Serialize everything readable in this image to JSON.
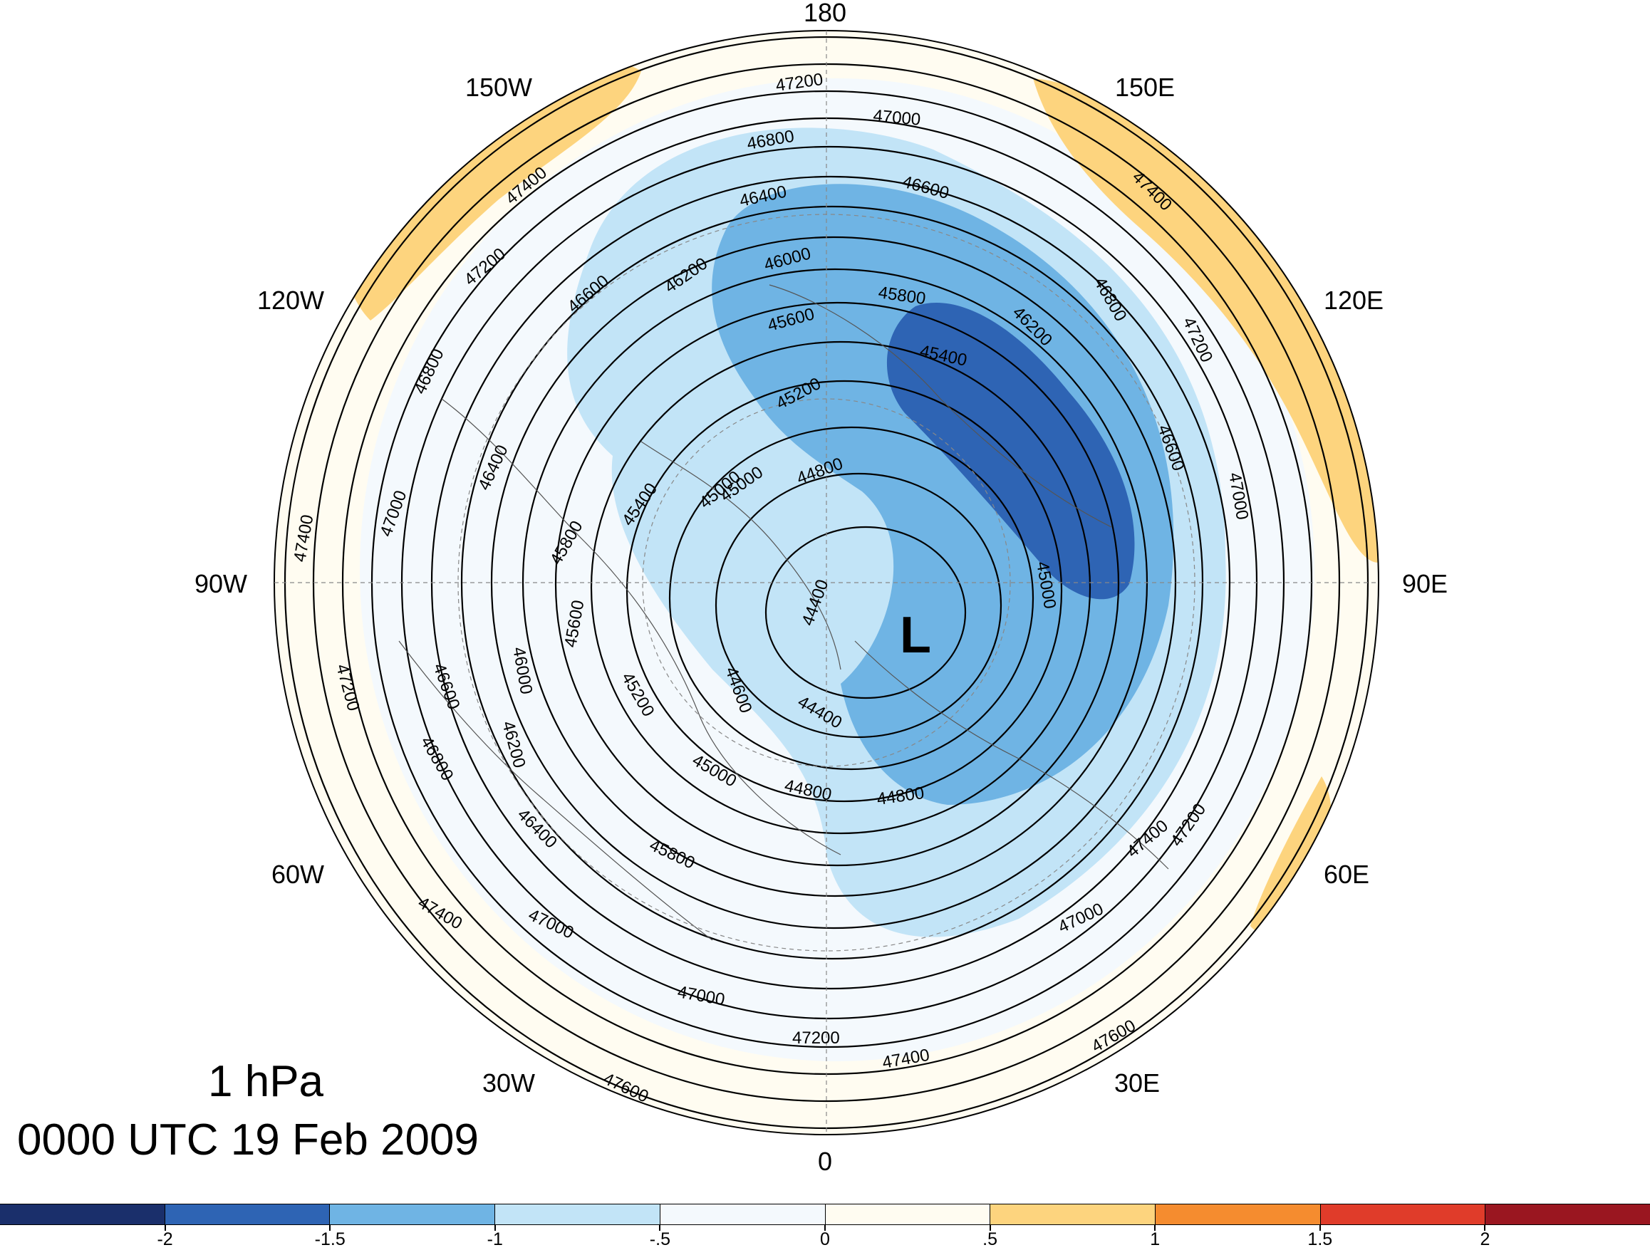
{
  "title": {
    "level": "1 hPa",
    "time": "0000 UTC 19 Feb 2009"
  },
  "map": {
    "projection": "polar stereographic, north pole",
    "longitude_labels": [
      "180",
      "150E",
      "120E",
      "90E",
      "60E",
      "30E",
      "0",
      "30W",
      "60W",
      "90W",
      "120W",
      "150W"
    ],
    "low_marker": "L",
    "contour_labels": [
      "47200",
      "47000",
      "46800",
      "46600",
      "46400",
      "46200",
      "46000",
      "45800",
      "45600",
      "45400",
      "45200",
      "45000",
      "44800",
      "44400",
      "47400",
      "47200",
      "46600",
      "46800",
      "46400",
      "47000",
      "47400",
      "45800",
      "45400",
      "45000",
      "46000",
      "45600",
      "46600",
      "47200",
      "45200",
      "44600",
      "46200",
      "46800",
      "44400",
      "45000",
      "44800",
      "44800",
      "46400",
      "45800",
      "47400",
      "47000",
      "47000",
      "47200",
      "47400",
      "47600",
      "47400",
      "47600",
      "47000",
      "47200",
      "45000",
      "46200",
      "46800",
      "47200",
      "46600",
      "47000",
      "47400"
    ]
  },
  "colorbar": {
    "colors": [
      "#1a2f6b",
      "#2e64b4",
      "#6fb4e4",
      "#c2e4f7",
      "#f4f9fd",
      "#fffcf1",
      "#fdd47e",
      "#f58c2f",
      "#e03c2a",
      "#9a1620"
    ],
    "tick_labels": [
      "-2",
      "-1.5",
      "-1",
      "-.5",
      "0",
      ".5",
      "1",
      "1.5",
      "2"
    ]
  }
}
